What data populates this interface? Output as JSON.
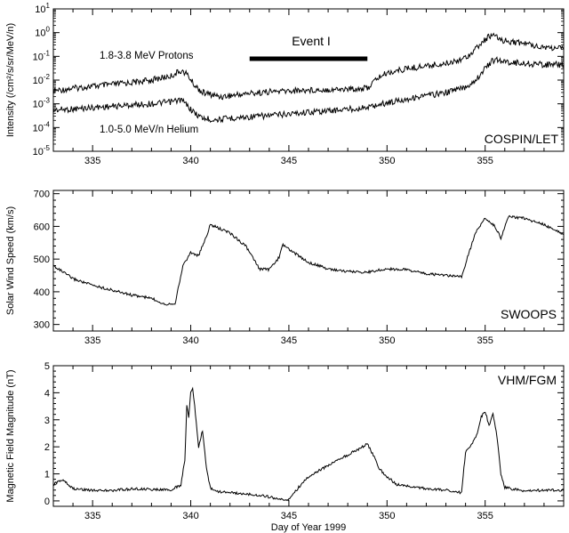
{
  "chart_data": [
    {
      "type": "line",
      "panel": "particles",
      "ylabel": "Intensity (/cm²/s/sr/MeV/n)",
      "yscale": "log",
      "ylim": [
        1e-05,
        10
      ],
      "xlim": [
        333,
        359
      ],
      "xticks": [
        "335",
        "340",
        "345",
        "350",
        "355"
      ],
      "yticks": [
        {
          "base": "10",
          "exp": "1"
        },
        {
          "base": "10",
          "exp": "0"
        },
        {
          "base": "10",
          "exp": "-1"
        },
        {
          "base": "10",
          "exp": "-2"
        },
        {
          "base": "10",
          "exp": "-3"
        },
        {
          "base": "10",
          "exp": "-4"
        },
        {
          "base": "10",
          "exp": "-5"
        }
      ],
      "instrument": "COSPIN/LET",
      "event": {
        "label": "Event I",
        "start": 343,
        "end": 349
      },
      "series": [
        {
          "name": "1.8-3.8 MeV Protons",
          "x": [
            333,
            334,
            335,
            336,
            337,
            338,
            339,
            339.5,
            339.8,
            340.2,
            340.6,
            341,
            341.5,
            342,
            343,
            344,
            345,
            346,
            347,
            348,
            349,
            349.5,
            350,
            351,
            352,
            353,
            354,
            354.5,
            355,
            355.3,
            355.6,
            356,
            357,
            358,
            359
          ],
          "y": [
            0.0035,
            0.0045,
            0.0055,
            0.0065,
            0.008,
            0.01,
            0.015,
            0.025,
            0.018,
            0.006,
            0.003,
            0.0025,
            0.002,
            0.0022,
            0.0028,
            0.0032,
            0.0035,
            0.0038,
            0.004,
            0.0042,
            0.0045,
            0.012,
            0.02,
            0.03,
            0.04,
            0.05,
            0.09,
            0.2,
            0.5,
            0.8,
            0.6,
            0.45,
            0.35,
            0.25,
            0.2
          ]
        },
        {
          "name": "1.0-5.0 MeV/n Helium",
          "x": [
            333,
            334,
            335,
            336,
            337,
            338,
            339,
            339.5,
            339.8,
            340.2,
            340.6,
            341,
            341.5,
            342,
            343,
            344,
            345,
            346,
            347,
            348,
            349,
            349.5,
            350,
            351,
            352,
            353,
            354,
            354.5,
            355,
            355.3,
            355.6,
            356,
            357,
            358,
            359
          ],
          "y": [
            0.00055,
            0.0006,
            0.0007,
            0.00078,
            0.0009,
            0.001,
            0.0012,
            0.0015,
            0.0009,
            0.0004,
            0.00025,
            0.00022,
            0.00022,
            0.00025,
            0.00028,
            0.00032,
            0.00038,
            0.00045,
            0.0005,
            0.0006,
            0.0007,
            0.0009,
            0.0011,
            0.0016,
            0.0022,
            0.003,
            0.005,
            0.01,
            0.03,
            0.06,
            0.07,
            0.06,
            0.05,
            0.045,
            0.045
          ]
        }
      ]
    },
    {
      "type": "line",
      "panel": "solar-wind",
      "ylabel": "Solar Wind Speed (km/s)",
      "ylim": [
        280,
        710
      ],
      "xlim": [
        333,
        359
      ],
      "xticks": [
        "335",
        "340",
        "345",
        "350",
        "355"
      ],
      "yticks": [
        "300",
        "400",
        "500",
        "600",
        "700"
      ],
      "instrument": "SWOOPS",
      "series": [
        {
          "x": [
            333,
            334,
            335,
            336,
            337,
            338,
            338.7,
            339.2,
            339.4,
            339.6,
            340,
            340.4,
            340.8,
            341,
            341.2,
            342,
            342.8,
            343.5,
            344,
            344.5,
            344.7,
            345,
            346,
            347,
            348,
            349,
            350,
            351,
            352,
            353,
            353.8,
            354.1,
            354.5,
            355,
            355.5,
            355.8,
            356.2,
            357,
            358,
            359
          ],
          "y": [
            480,
            440,
            420,
            405,
            390,
            380,
            362,
            365,
            420,
            480,
            520,
            510,
            570,
            605,
            600,
            580,
            540,
            470,
            468,
            505,
            545,
            530,
            490,
            470,
            462,
            460,
            470,
            468,
            455,
            450,
            445,
            505,
            580,
            625,
            600,
            565,
            630,
            625,
            605,
            575
          ]
        }
      ]
    },
    {
      "type": "line",
      "panel": "magnetic-field",
      "ylabel": "Magnetic Field Magnitude (nT)",
      "xlabel": "Day of Year 1999",
      "ylim": [
        -0.2,
        5
      ],
      "xlim": [
        333,
        359
      ],
      "xticks": [
        "335",
        "340",
        "345",
        "350",
        "355"
      ],
      "yticks": [
        "0",
        "1",
        "2",
        "3",
        "4",
        "5"
      ],
      "instrument": "VHM/FGM",
      "series": [
        {
          "x": [
            333,
            333.5,
            334,
            335,
            336,
            337,
            338,
            339,
            339.5,
            339.7,
            339.8,
            339.9,
            340,
            340.1,
            340.2,
            340.4,
            340.6,
            340.8,
            341,
            341.2,
            342,
            343,
            344,
            344.5,
            345,
            345.5,
            346,
            347,
            348,
            348.5,
            349,
            349.3,
            349.6,
            350,
            350.5,
            351,
            352,
            353,
            353.8,
            354,
            354.2,
            354.4,
            354.6,
            354.8,
            355,
            355.2,
            355.4,
            355.6,
            355.8,
            356,
            357,
            358,
            359
          ],
          "y": [
            0.6,
            0.8,
            0.45,
            0.4,
            0.38,
            0.45,
            0.42,
            0.4,
            0.6,
            1.5,
            3.5,
            3.1,
            4.0,
            4.2,
            3.5,
            2.0,
            2.6,
            1.2,
            0.5,
            0.35,
            0.3,
            0.25,
            0.15,
            0.05,
            0.05,
            0.5,
            0.9,
            1.3,
            1.7,
            1.9,
            2.1,
            1.7,
            1.2,
            0.9,
            0.6,
            0.55,
            0.45,
            0.4,
            0.3,
            1.8,
            2.0,
            2.2,
            2.5,
            3.1,
            3.3,
            2.8,
            3.2,
            2.4,
            1.0,
            0.5,
            0.35,
            0.4,
            0.4
          ]
        }
      ]
    }
  ]
}
